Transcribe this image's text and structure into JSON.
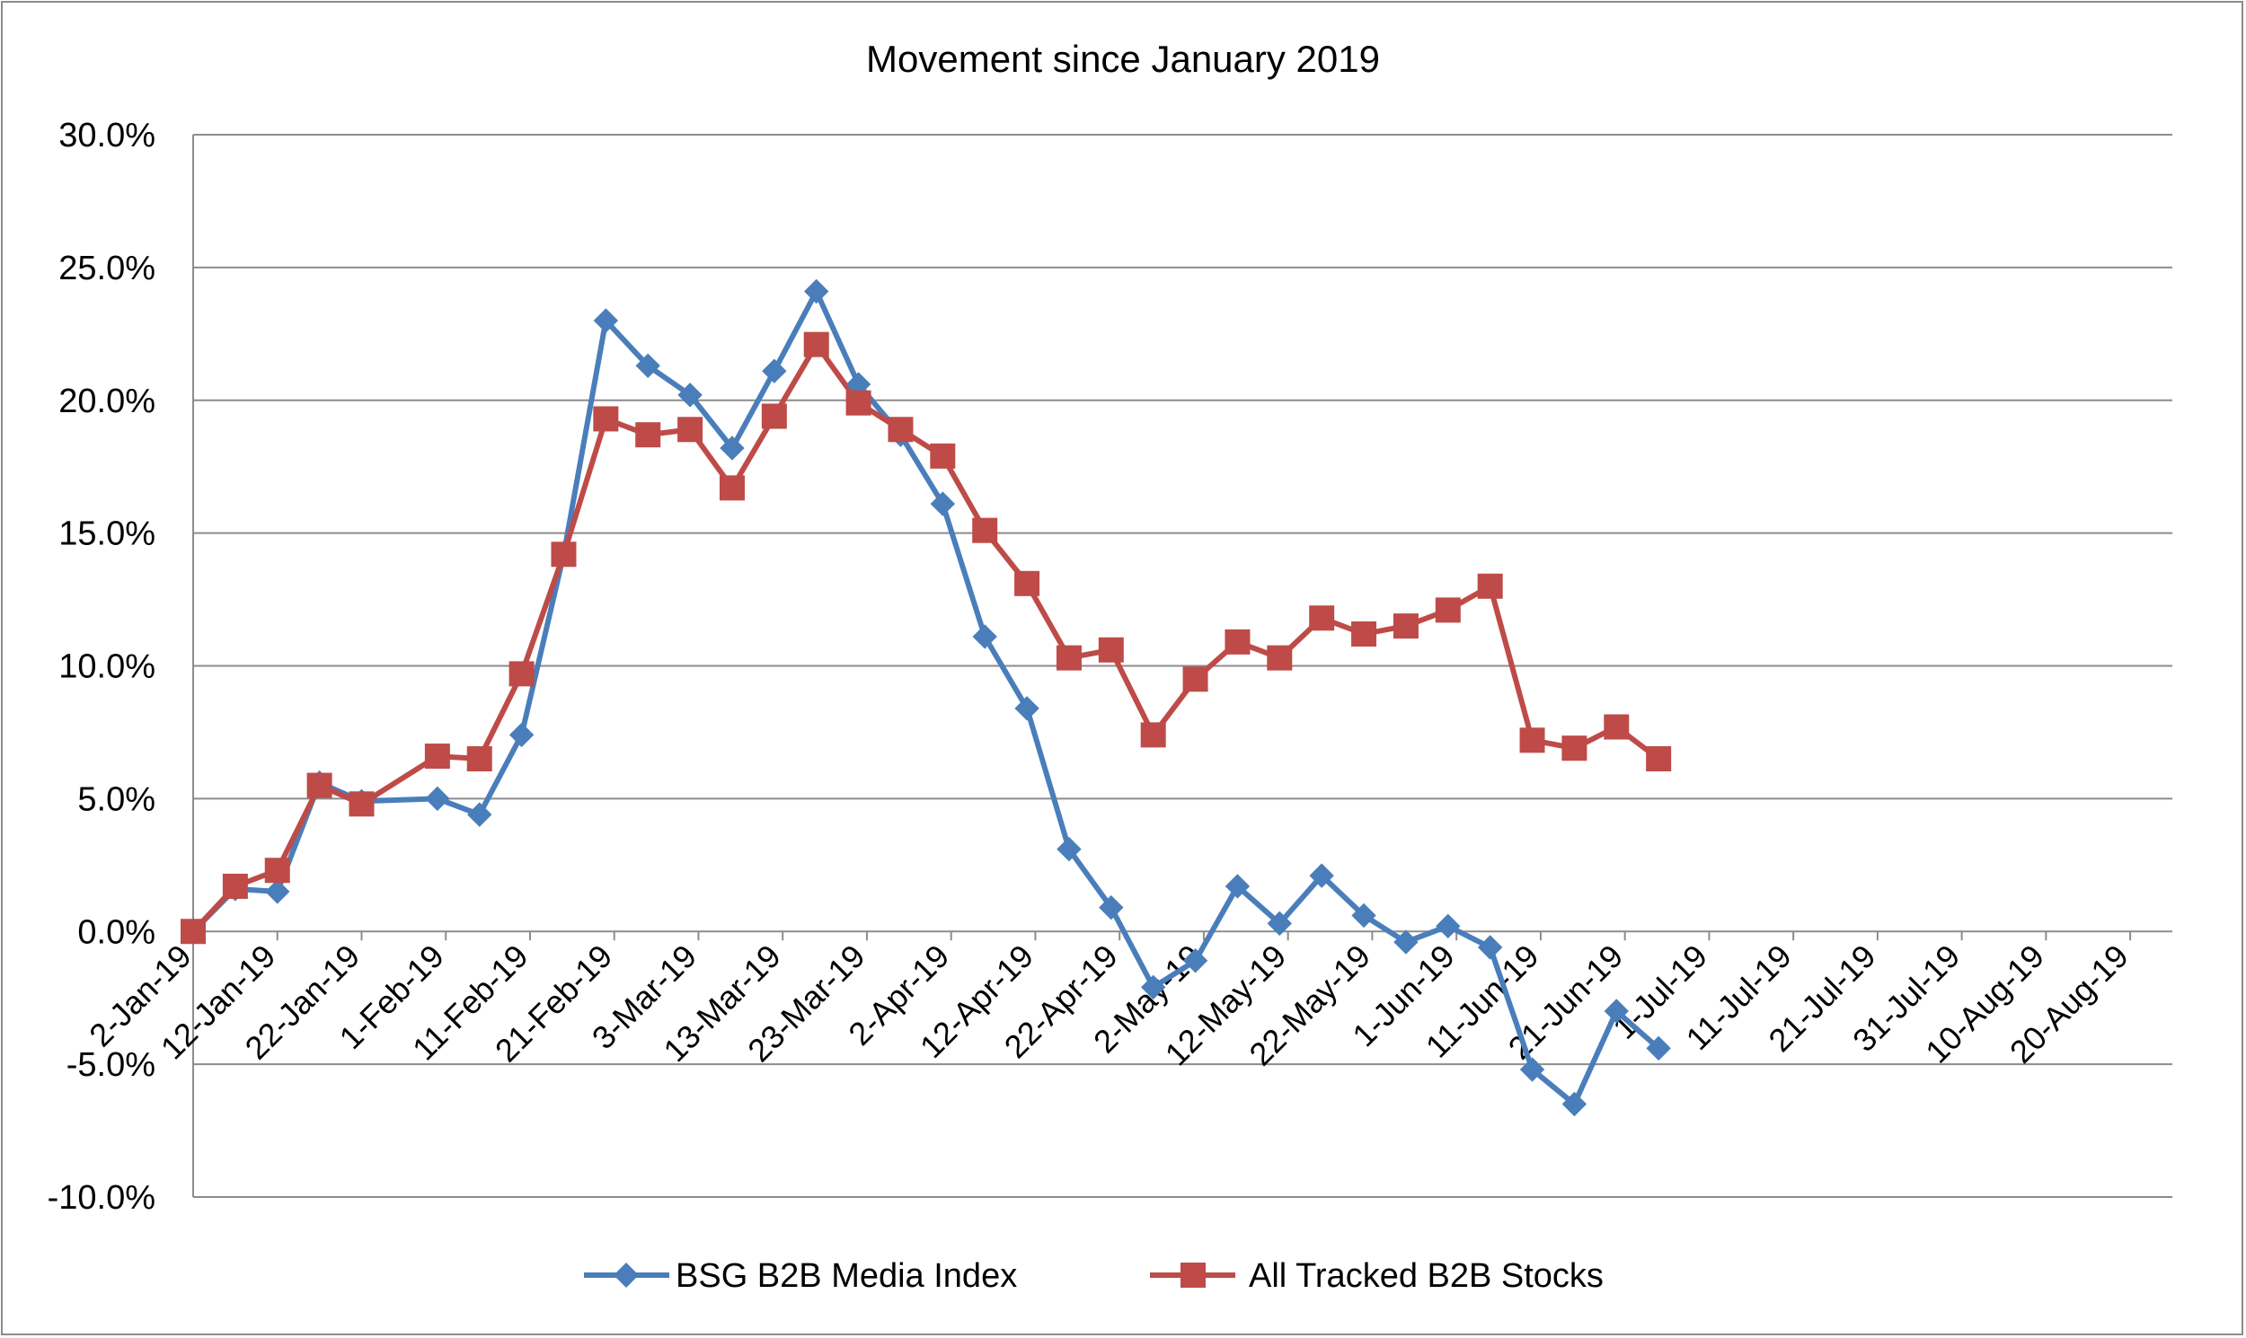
{
  "chart_data": {
    "type": "line",
    "title": "Movement since January 2019",
    "xlabel": "",
    "ylabel": "",
    "ylim": [
      -0.1,
      0.3
    ],
    "yticks": [
      "30.0%",
      "25.0%",
      "20.0%",
      "15.0%",
      "10.0%",
      "5.0%",
      "0.0%",
      "-5.0%",
      "-10.0%"
    ],
    "ytick_values": [
      0.3,
      0.25,
      0.2,
      0.15,
      0.1,
      0.05,
      0.0,
      -0.05,
      -0.1
    ],
    "x": [
      "2019-01-02",
      "2019-01-07",
      "2019-01-12",
      "2019-01-17",
      "2019-01-22",
      "2019-01-27",
      "2019-02-01",
      "2019-02-06",
      "2019-02-11",
      "2019-02-16",
      "2019-02-21",
      "2019-02-26",
      "2019-03-03",
      "2019-03-08",
      "2019-03-13",
      "2019-03-18",
      "2019-03-23",
      "2019-03-28",
      "2019-04-02",
      "2019-04-07",
      "2019-04-12",
      "2019-04-17",
      "2019-04-22",
      "2019-04-27",
      "2019-05-02",
      "2019-05-07",
      "2019-05-12",
      "2019-05-17",
      "2019-05-22",
      "2019-05-27",
      "2019-06-01",
      "2019-06-06",
      "2019-06-11",
      "2019-06-16",
      "2019-06-21",
      "2019-06-26",
      "2019-07-01",
      "2019-07-06",
      "2019-07-11",
      "2019-07-16",
      "2019-07-21",
      "2019-07-26",
      "2019-07-31",
      "2019-08-05",
      "2019-08-10",
      "2019-08-15",
      "2019-08-20",
      "2019-08-25"
    ],
    "xtick_labels": [
      "2-Jan-19",
      "12-Jan-19",
      "22-Jan-19",
      "1-Feb-19",
      "11-Feb-19",
      "21-Feb-19",
      "3-Mar-19",
      "13-Mar-19",
      "23-Mar-19",
      "2-Apr-19",
      "12-Apr-19",
      "22-Apr-19",
      "2-May-19",
      "12-May-19",
      "22-May-19",
      "1-Jun-19",
      "11-Jun-19",
      "21-Jun-19",
      "1-Jul-19",
      "11-Jul-19",
      "21-Jul-19",
      "31-Jul-19",
      "10-Aug-19",
      "20-Aug-19"
    ],
    "grid": true,
    "legend_position": "bottom",
    "series": [
      {
        "name": "BSG B2B Media Index",
        "color": "#4a7ebb",
        "marker": "diamond",
        "points": [
          {
            "x": "2019-01-02",
            "y": 0.0
          },
          {
            "x": "2019-01-07",
            "y": 0.016
          },
          {
            "x": "2019-01-12",
            "y": 0.015
          },
          {
            "x": "2019-01-17",
            "y": 0.056
          },
          {
            "x": "2019-01-22",
            "y": 0.049
          },
          {
            "x": "2019-01-31",
            "y": 0.05
          },
          {
            "x": "2019-02-05",
            "y": 0.044
          },
          {
            "x": "2019-02-10",
            "y": 0.074
          },
          {
            "x": "2019-02-15",
            "y": 0.142
          },
          {
            "x": "2019-02-20",
            "y": 0.23
          },
          {
            "x": "2019-02-25",
            "y": 0.213
          },
          {
            "x": "2019-03-02",
            "y": 0.202
          },
          {
            "x": "2019-03-07",
            "y": 0.182
          },
          {
            "x": "2019-03-12",
            "y": 0.211
          },
          {
            "x": "2019-03-17",
            "y": 0.241
          },
          {
            "x": "2019-03-22",
            "y": 0.206
          },
          {
            "x": "2019-03-27",
            "y": 0.187
          },
          {
            "x": "2019-04-01",
            "y": 0.161
          },
          {
            "x": "2019-04-06",
            "y": 0.111
          },
          {
            "x": "2019-04-11",
            "y": 0.084
          },
          {
            "x": "2019-04-16",
            "y": 0.031
          },
          {
            "x": "2019-04-21",
            "y": 0.009
          },
          {
            "x": "2019-04-26",
            "y": -0.021
          },
          {
            "x": "2019-05-01",
            "y": -0.011
          },
          {
            "x": "2019-05-06",
            "y": 0.017
          },
          {
            "x": "2019-05-11",
            "y": 0.003
          },
          {
            "x": "2019-05-16",
            "y": 0.021
          },
          {
            "x": "2019-05-21",
            "y": 0.006
          },
          {
            "x": "2019-05-26",
            "y": -0.004
          },
          {
            "x": "2019-05-31",
            "y": 0.002
          },
          {
            "x": "2019-06-05",
            "y": -0.006
          },
          {
            "x": "2019-06-10",
            "y": -0.052
          },
          {
            "x": "2019-06-15",
            "y": -0.065
          },
          {
            "x": "2019-06-20",
            "y": -0.03
          },
          {
            "x": "2019-06-25",
            "y": -0.044
          }
        ]
      },
      {
        "name": "All Tracked B2B Stocks",
        "color": "#be4b48",
        "marker": "square",
        "points": [
          {
            "x": "2019-01-02",
            "y": 0.0
          },
          {
            "x": "2019-01-07",
            "y": 0.017
          },
          {
            "x": "2019-01-12",
            "y": 0.023
          },
          {
            "x": "2019-01-17",
            "y": 0.055
          },
          {
            "x": "2019-01-22",
            "y": 0.048
          },
          {
            "x": "2019-01-31",
            "y": 0.066
          },
          {
            "x": "2019-02-05",
            "y": 0.065
          },
          {
            "x": "2019-02-10",
            "y": 0.097
          },
          {
            "x": "2019-02-15",
            "y": 0.142
          },
          {
            "x": "2019-02-20",
            "y": 0.193
          },
          {
            "x": "2019-02-25",
            "y": 0.187
          },
          {
            "x": "2019-03-02",
            "y": 0.189
          },
          {
            "x": "2019-03-07",
            "y": 0.167
          },
          {
            "x": "2019-03-12",
            "y": 0.194
          },
          {
            "x": "2019-03-17",
            "y": 0.221
          },
          {
            "x": "2019-03-22",
            "y": 0.199
          },
          {
            "x": "2019-03-27",
            "y": 0.189
          },
          {
            "x": "2019-04-01",
            "y": 0.179
          },
          {
            "x": "2019-04-06",
            "y": 0.151
          },
          {
            "x": "2019-04-11",
            "y": 0.131
          },
          {
            "x": "2019-04-16",
            "y": 0.103
          },
          {
            "x": "2019-04-21",
            "y": 0.106
          },
          {
            "x": "2019-04-26",
            "y": 0.074
          },
          {
            "x": "2019-05-01",
            "y": 0.095
          },
          {
            "x": "2019-05-06",
            "y": 0.109
          },
          {
            "x": "2019-05-11",
            "y": 0.103
          },
          {
            "x": "2019-05-16",
            "y": 0.118
          },
          {
            "x": "2019-05-21",
            "y": 0.112
          },
          {
            "x": "2019-05-26",
            "y": 0.115
          },
          {
            "x": "2019-05-31",
            "y": 0.121
          },
          {
            "x": "2019-06-05",
            "y": 0.13
          },
          {
            "x": "2019-06-10",
            "y": 0.072
          },
          {
            "x": "2019-06-15",
            "y": 0.069
          },
          {
            "x": "2019-06-20",
            "y": 0.077
          },
          {
            "x": "2019-06-25",
            "y": 0.065
          }
        ]
      }
    ]
  }
}
